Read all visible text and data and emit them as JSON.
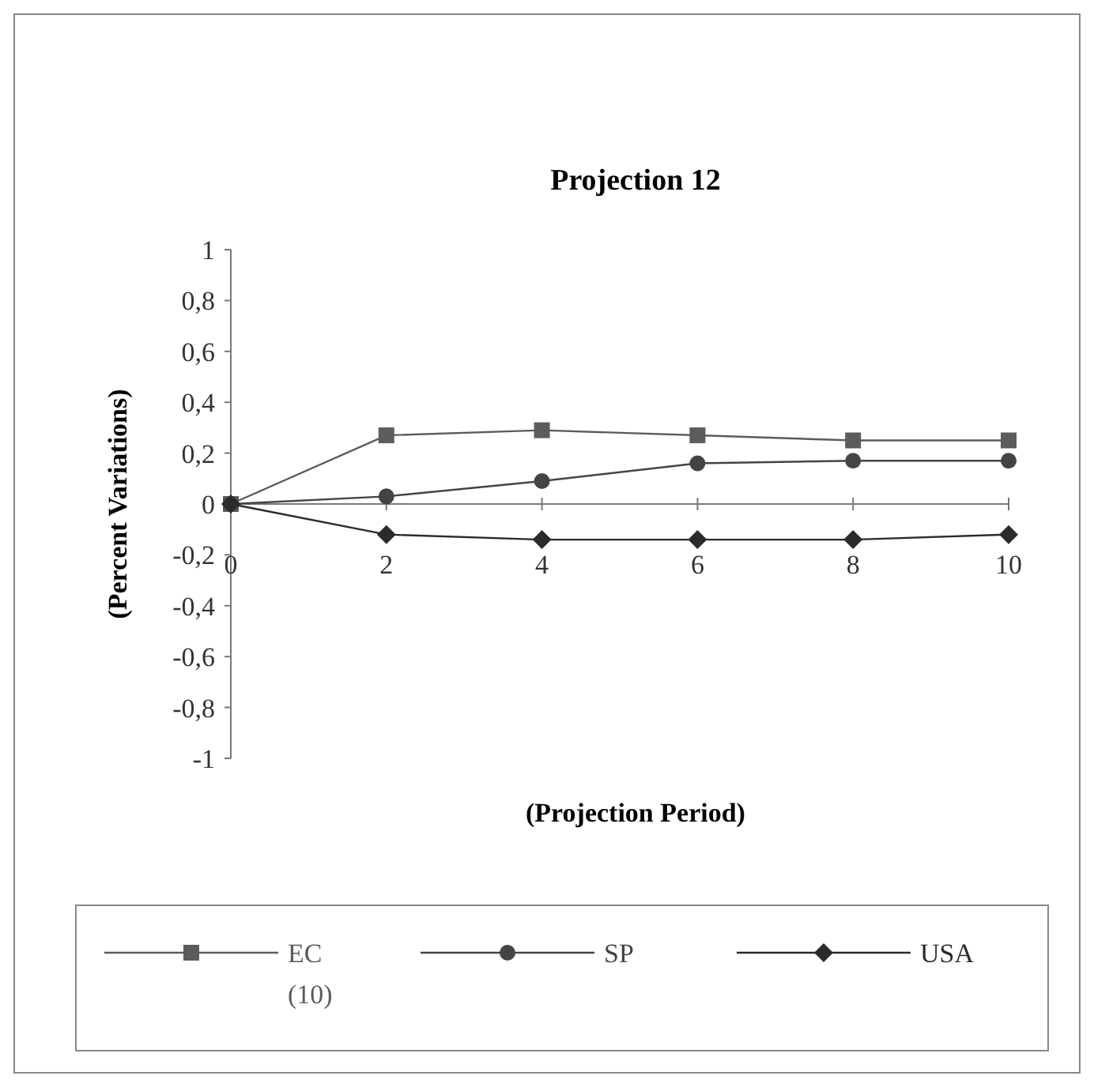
{
  "chart_data": {
    "type": "line",
    "title": "Projection 12",
    "xlabel": "(Projection Period)",
    "ylabel": "(Percent Variations)",
    "x": [
      0,
      2,
      4,
      6,
      8,
      10
    ],
    "xlim": [
      0,
      10
    ],
    "xticks": [
      0,
      2,
      4,
      6,
      8,
      10
    ],
    "ylim": [
      -1,
      1
    ],
    "yticks": [
      {
        "value": -1,
        "label": "-1"
      },
      {
        "value": -0.8,
        "label": "-0,8"
      },
      {
        "value": -0.6,
        "label": "-0,6"
      },
      {
        "value": -0.4,
        "label": "-0,4"
      },
      {
        "value": -0.2,
        "label": "-0,2"
      },
      {
        "value": 0,
        "label": "0"
      },
      {
        "value": 0.2,
        "label": "0,2"
      },
      {
        "value": 0.4,
        "label": "0,4"
      },
      {
        "value": 0.6,
        "label": "0,6"
      },
      {
        "value": 0.8,
        "label": "0,8"
      },
      {
        "value": 1,
        "label": "1"
      }
    ],
    "legend": "bottom",
    "series": [
      {
        "name": "EC (10)",
        "color": "#5c5c5c",
        "marker": "square",
        "values": [
          0,
          0.27,
          0.29,
          0.27,
          0.25,
          0.25
        ]
      },
      {
        "name": "SP",
        "color": "#444444",
        "marker": "circle",
        "values": [
          0,
          0.03,
          0.09,
          0.16,
          0.17,
          0.17
        ]
      },
      {
        "name": "USA",
        "color": "#2b2b2b",
        "marker": "diamond",
        "values": [
          0,
          -0.12,
          -0.14,
          -0.14,
          -0.14,
          -0.12
        ]
      }
    ]
  }
}
